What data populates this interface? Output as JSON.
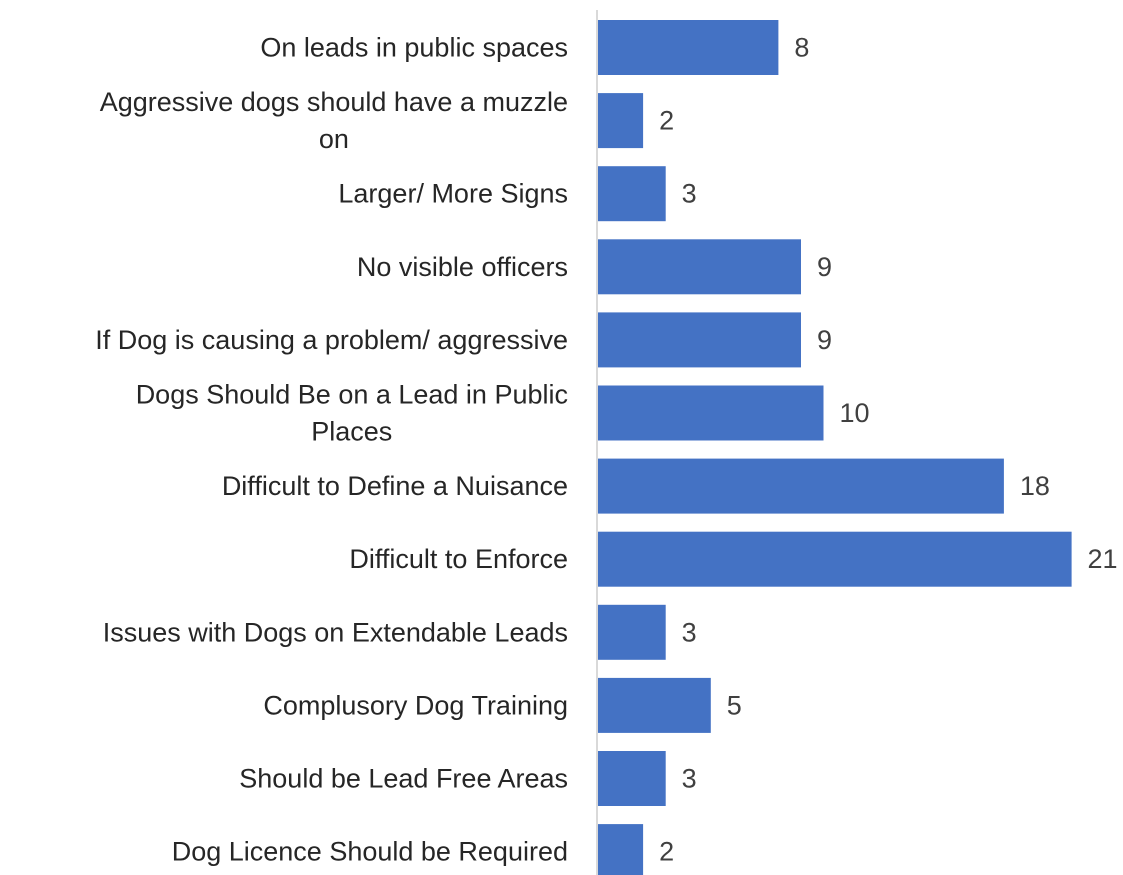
{
  "chart_data": {
    "type": "bar",
    "orientation": "horizontal",
    "categories": [
      "On leads in public spaces",
      "Aggressive dogs should have a muzzle on",
      "Larger/ More Signs",
      "No visible officers",
      "If Dog is causing a problem/ aggressive",
      "Dogs Should Be on a Lead in Public Places",
      "Difficult to Define a Nuisance",
      "Difficult to Enforce",
      "Issues with Dogs on Extendable Leads",
      "Complusory Dog Training",
      "Should be Lead Free Areas",
      "Dog Licence Should be Required"
    ],
    "category_label_lines": [
      [
        "On leads in public spaces"
      ],
      [
        "Aggressive dogs should have a muzzle",
        "on"
      ],
      [
        "Larger/ More Signs"
      ],
      [
        "No visible officers"
      ],
      [
        "If Dog is causing a problem/ aggressive"
      ],
      [
        "Dogs Should Be on a Lead in Public",
        "Places"
      ],
      [
        "Difficult to Define a Nuisance"
      ],
      [
        "Difficult to Enforce"
      ],
      [
        "Issues with Dogs on Extendable Leads"
      ],
      [
        "Complusory Dog Training"
      ],
      [
        "Should be Lead Free Areas"
      ],
      [
        "Dog Licence Should be Required"
      ]
    ],
    "values": [
      8,
      2,
      3,
      9,
      9,
      10,
      18,
      21,
      3,
      5,
      3,
      2
    ],
    "data_labels": [
      "8",
      "2",
      "3",
      "9",
      "9",
      "10",
      "18",
      "21",
      "3",
      "5",
      "3",
      "2"
    ],
    "xlim": [
      0,
      21
    ],
    "bar_color": "#4472C4",
    "axis_color": "#D9D9D9",
    "grid": false,
    "legend": "none",
    "title": "",
    "xlabel": "",
    "ylabel": ""
  }
}
